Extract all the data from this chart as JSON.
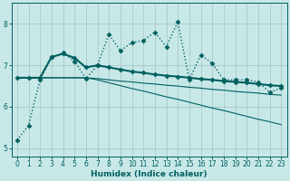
{
  "xlabel": "Humidex (Indice chaleur)",
  "xlim": [
    -0.5,
    23.5
  ],
  "ylim": [
    4.8,
    8.5
  ],
  "yticks": [
    5,
    6,
    7,
    8
  ],
  "xticks": [
    0,
    1,
    2,
    3,
    4,
    5,
    6,
    7,
    8,
    9,
    10,
    11,
    12,
    13,
    14,
    15,
    16,
    17,
    18,
    19,
    20,
    21,
    22,
    23
  ],
  "background_color": "#c8e8e8",
  "grid_color": "#aacaca",
  "line_color": "#006060",
  "lines": [
    {
      "x": [
        0,
        1,
        2,
        3,
        4,
        5,
        6,
        7,
        8,
        9,
        10,
        11,
        12,
        13,
        14,
        15,
        16,
        17,
        18,
        19,
        20,
        21,
        22,
        23
      ],
      "y": [
        5.2,
        5.55,
        6.65,
        7.2,
        7.3,
        7.1,
        6.68,
        7.0,
        7.75,
        7.35,
        7.55,
        7.6,
        7.8,
        7.45,
        8.05,
        6.65,
        7.25,
        7.05,
        6.65,
        6.65,
        6.65,
        6.6,
        6.35,
        6.45
      ],
      "marker": "D",
      "markersize": 2.5,
      "linestyle": "dotted",
      "linewidth": 1.0
    },
    {
      "x": [
        0,
        1,
        2,
        3,
        4,
        5,
        6,
        7,
        8,
        9,
        10,
        11,
        12,
        13,
        14,
        15,
        16,
        17,
        18,
        19,
        20,
        21,
        22,
        23
      ],
      "y": [
        6.7,
        6.7,
        6.7,
        7.2,
        7.28,
        7.18,
        6.95,
        7.0,
        6.95,
        6.9,
        6.85,
        6.82,
        6.78,
        6.75,
        6.73,
        6.7,
        6.67,
        6.65,
        6.62,
        6.6,
        6.58,
        6.55,
        6.52,
        6.5
      ],
      "marker": "D",
      "markersize": 2.5,
      "linestyle": "solid",
      "linewidth": 1.5
    },
    {
      "x": [
        0,
        1,
        2,
        3,
        4,
        5,
        6,
        7,
        8,
        9,
        10,
        11,
        12,
        13,
        14,
        15,
        16,
        17,
        18,
        19,
        20,
        21,
        22,
        23
      ],
      "y": [
        6.7,
        6.7,
        6.7,
        6.7,
        6.7,
        6.7,
        6.7,
        6.68,
        6.65,
        6.62,
        6.6,
        6.57,
        6.55,
        6.52,
        6.5,
        6.47,
        6.45,
        6.42,
        6.4,
        6.37,
        6.35,
        6.33,
        6.3,
        6.28
      ],
      "marker": null,
      "markersize": 0,
      "linestyle": "solid",
      "linewidth": 0.8
    },
    {
      "x": [
        0,
        1,
        2,
        3,
        4,
        5,
        6,
        7,
        8,
        9,
        10,
        11,
        12,
        13,
        14,
        15,
        16,
        17,
        18,
        19,
        20,
        21,
        22,
        23
      ],
      "y": [
        6.7,
        6.7,
        6.7,
        6.7,
        6.7,
        6.7,
        6.7,
        6.65,
        6.58,
        6.51,
        6.44,
        6.38,
        6.31,
        6.24,
        6.18,
        6.11,
        6.04,
        5.97,
        5.91,
        5.84,
        5.77,
        5.7,
        5.64,
        5.57
      ],
      "marker": null,
      "markersize": 0,
      "linestyle": "solid",
      "linewidth": 0.8
    }
  ]
}
